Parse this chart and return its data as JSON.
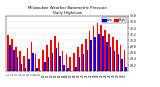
{
  "title": "Milwaukee Weather Barometric Pressure",
  "subtitle": "Daily High/Low",
  "background_color": "#ffffff",
  "high_color": "#ff0000",
  "low_color": "#0000ff",
  "legend_high": "High",
  "legend_low": "Low",
  "ylim": [
    29.0,
    30.8
  ],
  "ytick_vals": [
    29.2,
    29.4,
    29.6,
    29.8,
    30.0,
    30.2,
    30.4,
    30.6,
    30.8
  ],
  "days": [
    "1",
    "2",
    "3",
    "4",
    "5",
    "6",
    "7",
    "8",
    "9",
    "10",
    "11",
    "12",
    "13",
    "14",
    "15",
    "16",
    "17",
    "18",
    "19",
    "20",
    "21",
    "22",
    "23",
    "24",
    "25",
    "26",
    "27",
    "28",
    "29",
    "30",
    "31"
  ],
  "highs": [
    30.18,
    30.05,
    29.8,
    29.65,
    29.5,
    29.75,
    29.95,
    29.55,
    29.4,
    29.7,
    29.85,
    30.0,
    30.15,
    29.95,
    29.65,
    29.55,
    29.45,
    29.6,
    29.8,
    29.9,
    30.05,
    30.3,
    30.45,
    30.55,
    30.5,
    30.35,
    30.2,
    30.1,
    30.0,
    29.85,
    29.7
  ],
  "lows": [
    29.85,
    29.7,
    29.45,
    29.25,
    29.1,
    29.4,
    29.6,
    29.1,
    28.95,
    29.3,
    29.45,
    29.6,
    29.75,
    29.5,
    29.2,
    29.1,
    29.0,
    29.15,
    29.45,
    29.55,
    29.7,
    30.0,
    30.1,
    30.2,
    30.15,
    29.95,
    29.8,
    29.65,
    29.55,
    29.4,
    29.15
  ]
}
